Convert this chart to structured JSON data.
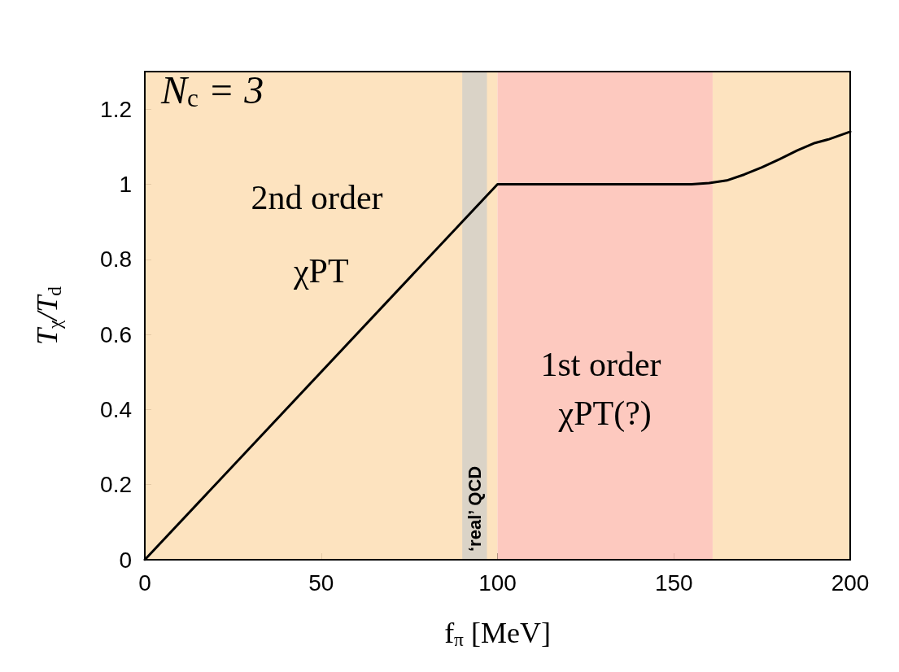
{
  "chart_data": {
    "type": "line",
    "xlabel": "f$_{π}$ [MeV]",
    "ylabel": "T$_{χ}$/T$_{d}$",
    "annotations": [
      "N$_{c}$ = 3"
    ],
    "series": [
      {
        "color": "#000000",
        "x": [
          0,
          100,
          155,
          160,
          165,
          170,
          175,
          180,
          185,
          190,
          194,
          200
        ],
        "values": [
          0,
          1,
          1,
          1.003,
          1.01,
          1.026,
          1.045,
          1.067,
          1.09,
          1.11,
          1.12,
          1.14
        ]
      }
    ],
    "xlim": [
      0,
      200
    ],
    "xticks": [
      0,
      50,
      100,
      150,
      200
    ],
    "ylim": [
      0,
      1.3
    ],
    "yticks": [
      0,
      0.2,
      0.4,
      0.6,
      0.8,
      1,
      1.2
    ],
    "bands": [
      {
        "axis": "x",
        "from": 0,
        "to": 100,
        "label": "2nd order χPT",
        "color": "#fde0b8"
      },
      {
        "axis": "x",
        "from": 161,
        "to": 200,
        "label": null,
        "color": "#fde0b8"
      },
      {
        "axis": "x",
        "from": 100,
        "to": 161,
        "label": "1st order χPT(?)",
        "color": "#fdc3b8"
      },
      {
        "axis": "x",
        "from": 90,
        "to": 97,
        "label": "‘real’ QCD",
        "color": "#d6d0c8"
      }
    ],
    "grid": false,
    "marker": "none",
    "line_style": "solid"
  }
}
